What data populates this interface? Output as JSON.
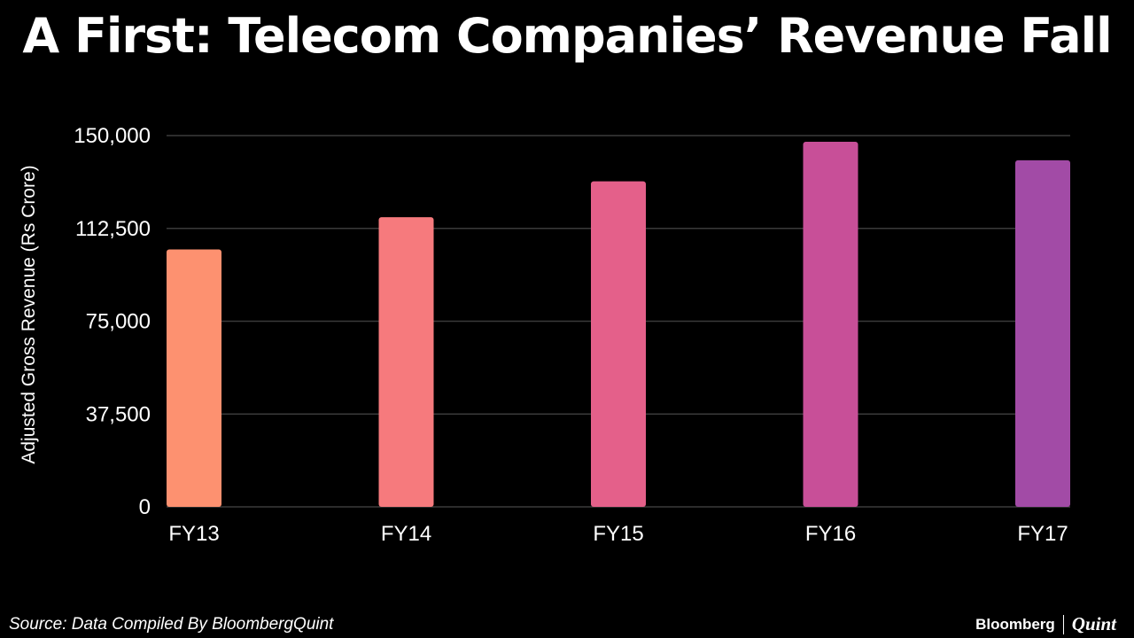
{
  "chart_data": {
    "type": "bar",
    "title": "A First: Telecom Companies’ Revenue Fall",
    "ylabel": "Adjusted Gross Revenue (Rs Crore)",
    "xlabel": "",
    "categories": [
      "FY13",
      "FY14",
      "FY15",
      "FY16",
      "FY17"
    ],
    "values": [
      104000,
      117000,
      131500,
      147500,
      140000
    ],
    "ylim": [
      0,
      150000
    ],
    "yticks": [
      0,
      37500,
      75000,
      112500,
      150000
    ],
    "ytick_labels": [
      "0",
      "37,500",
      "75,000",
      "112,500",
      "150,000"
    ],
    "grid": true,
    "bar_colors": [
      "#fd9170",
      "#f67a7d",
      "#e4608a",
      "#c84f98",
      "#a24ba6"
    ],
    "background": "#000000",
    "gridline_color": "#3a3a3a"
  },
  "source": "Source: Data Compiled By BloombergQuint",
  "brand": {
    "name": "Bloomberg",
    "sub": "Quint"
  }
}
